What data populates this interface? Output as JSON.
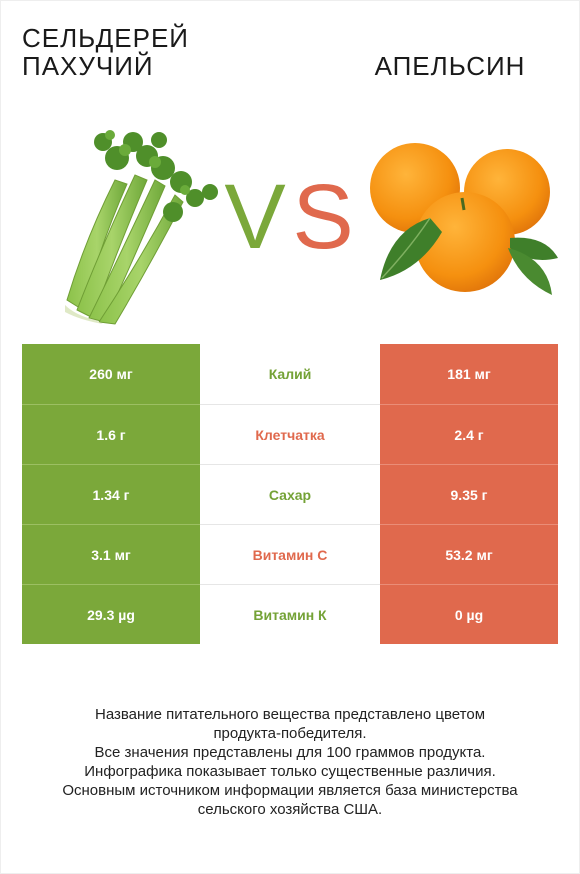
{
  "header": {
    "left_title_line1": "Сельдерей",
    "left_title_line2": "пахучий",
    "right_title": "Апельсин",
    "vs_left": "V",
    "vs_right": "S"
  },
  "colors": {
    "left_accent": "#7ba83a",
    "right_accent": "#e0694d"
  },
  "rows": [
    {
      "left": "260 мг",
      "nutrient": "Калий",
      "right": "181 мг",
      "winner": "left"
    },
    {
      "left": "1.6 г",
      "nutrient": "Клетчатка",
      "right": "2.4 г",
      "winner": "right"
    },
    {
      "left": "1.34 г",
      "nutrient": "Сахар",
      "right": "9.35 г",
      "winner": "left"
    },
    {
      "left": "3.1 мг",
      "nutrient": "Витамин С",
      "right": "53.2 мг",
      "winner": "right"
    },
    {
      "left": "29.3 µg",
      "nutrient": "Витамин К",
      "right": "0 µg",
      "winner": "left"
    }
  ],
  "footer": {
    "line1": "Название питательного вещества представлено цветом",
    "line2": "продукта-победителя.",
    "line3": "Все значения представлены для 100 граммов продукта.",
    "line4": "Инфографика показывает только существенные различия.",
    "line5": "Основным источником информации является база министерства",
    "line6": "сельского хозяйства США."
  }
}
